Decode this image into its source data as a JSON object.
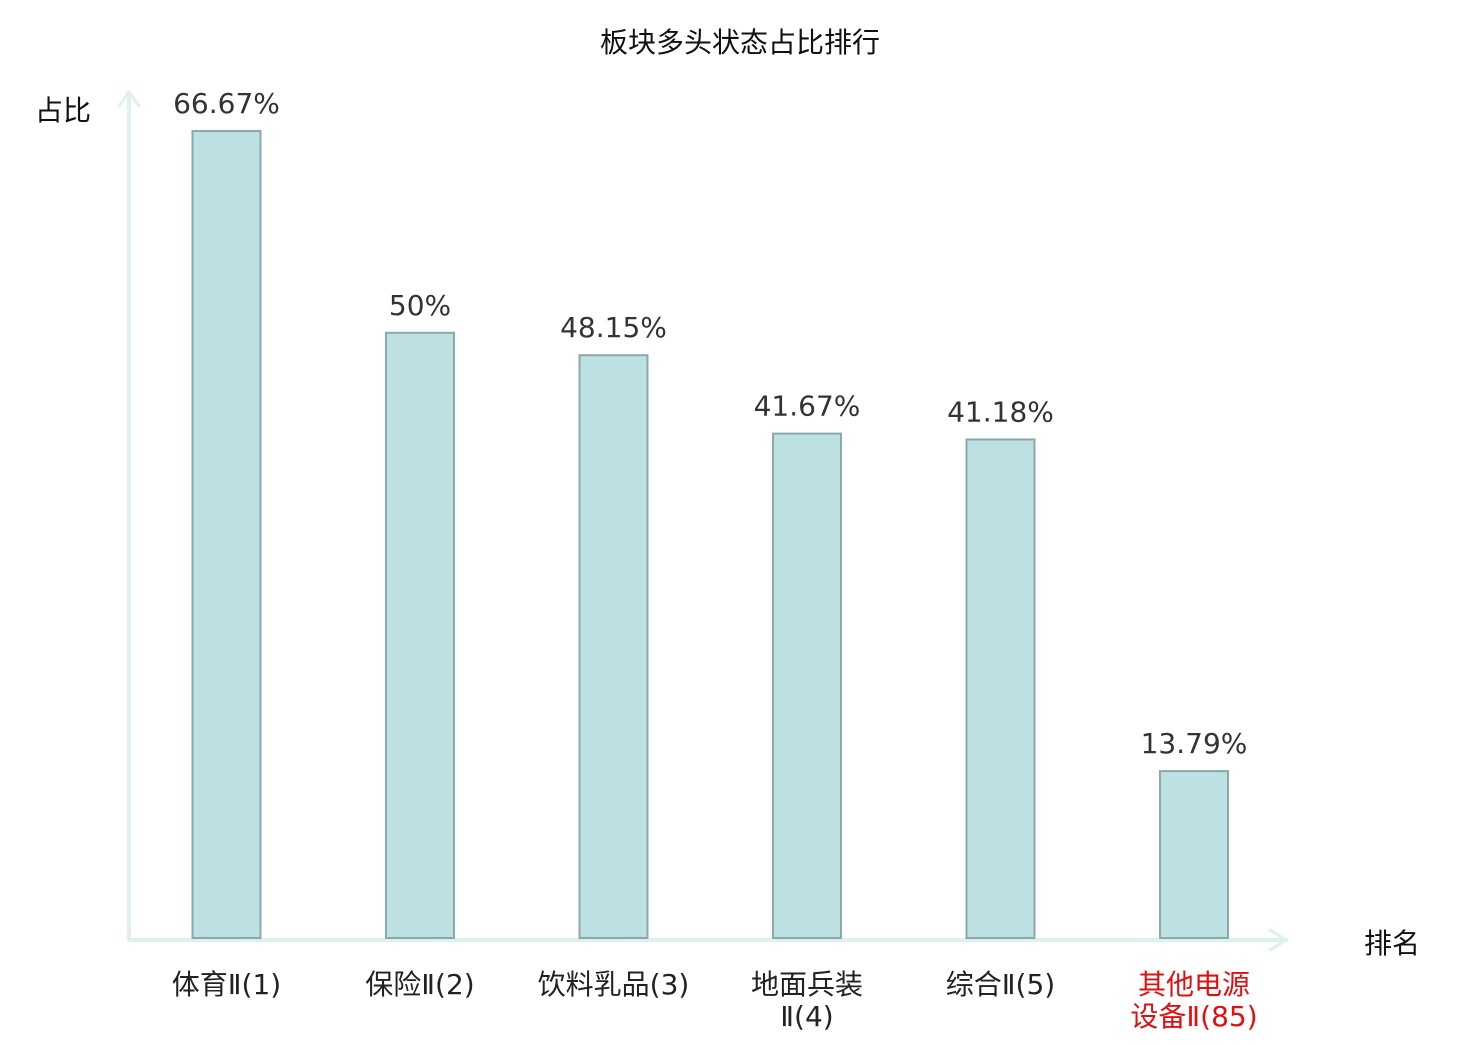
{
  "chart_data": {
    "type": "bar",
    "title": "板块多头状态占比排行",
    "ylabel": "占比",
    "xlabel": "排名",
    "categories": [
      [
        "体育Ⅱ(1)"
      ],
      [
        "保险Ⅱ(2)"
      ],
      [
        "饮料乳品(3)"
      ],
      [
        "地面兵装",
        "Ⅱ(4)"
      ],
      [
        "综合Ⅱ(5)"
      ],
      [
        "其他电源",
        "设备Ⅱ(85)"
      ]
    ],
    "values": [
      66.67,
      50,
      48.15,
      41.67,
      41.18,
      13.79
    ],
    "value_labels": [
      "66.67%",
      "50%",
      "48.15%",
      "41.67%",
      "41.18%",
      "13.79%"
    ],
    "highlight_index": 5,
    "ylim": [
      0,
      70
    ],
    "grid": false,
    "colors": {
      "bar_fill": "#bde0e3",
      "bar_stroke": "#8aa9ad",
      "axis": "#dff1ef",
      "label_text": "#333333",
      "category_text": "#222222",
      "highlight_text": "#e01010"
    }
  }
}
